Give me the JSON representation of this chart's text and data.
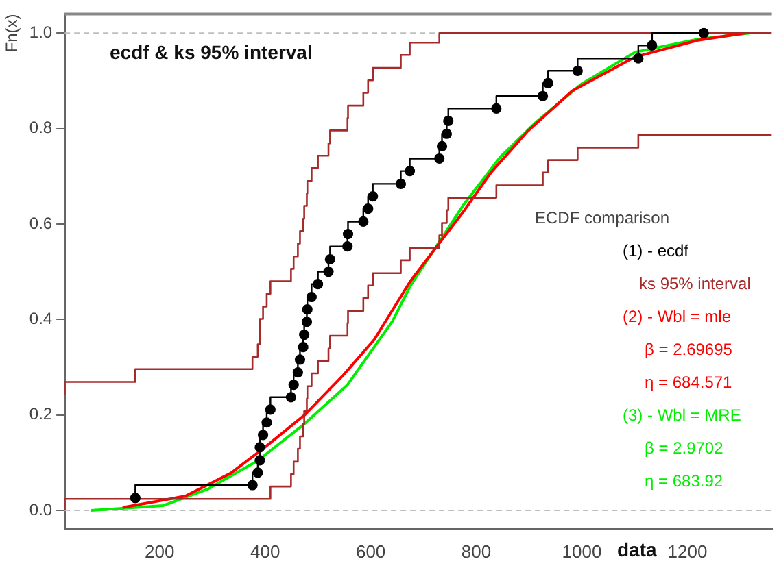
{
  "chart_data": {
    "type": "step",
    "title": "ecdf & ks 95% interval",
    "xlabel": "data",
    "ylabel": "Fn(x)",
    "legend_title": "ECDF comparison",
    "legend": "right",
    "marker": "none",
    "grid": false,
    "xlim": [
      20,
      1360
    ],
    "xticks": [
      200,
      400,
      600,
      800,
      1000,
      1200
    ],
    "ylim": [
      -0.04,
      1.04
    ],
    "yticks": [
      {
        "value": 0,
        "label": "0.0"
      },
      {
        "value": 0.2,
        "label": "0.2"
      },
      {
        "value": 0.4,
        "label": "0.4"
      },
      {
        "value": 0.6,
        "label": "0.6"
      },
      {
        "value": 0.8,
        "label": "0.8"
      },
      {
        "value": 1,
        "label": "1.0"
      }
    ],
    "ref_lines": [
      {
        "axis": "y",
        "value": 0,
        "color": "#bebebe",
        "line_style": "dashed"
      },
      {
        "axis": "y",
        "value": 1,
        "color": "#bebebe",
        "line_style": "dashed"
      }
    ],
    "series": [
      {
        "name": "(1) - ecdf",
        "marker": "circle",
        "color": "#000000",
        "x": [
          154,
          376,
          386,
          390,
          390,
          396,
          403,
          410,
          449,
          454,
          462,
          466,
          472,
          474,
          479,
          480,
          488,
          500,
          520,
          523,
          556,
          557,
          586,
          595,
          604,
          657,
          674,
          730,
          735,
          744,
          747,
          838,
          926,
          936,
          992,
          1107,
          1133,
          1231
        ],
        "values": [
          0.026,
          0.053,
          0.079,
          0.105,
          0.132,
          0.158,
          0.184,
          0.211,
          0.237,
          0.263,
          0.289,
          0.316,
          0.342,
          0.368,
          0.395,
          0.421,
          0.447,
          0.474,
          0.5,
          0.526,
          0.553,
          0.579,
          0.605,
          0.632,
          0.658,
          0.684,
          0.711,
          0.737,
          0.763,
          0.789,
          0.816,
          0.842,
          0.868,
          0.895,
          0.921,
          0.947,
          0.974,
          1
        ]
      },
      {
        "name": "ks 95% interval",
        "color": "#a52a2a",
        "x": [
          20,
          154,
          376,
          386,
          390,
          390,
          396,
          403,
          410,
          449,
          454,
          462,
          466,
          472,
          474,
          479,
          480,
          488,
          500,
          520,
          523,
          556,
          557,
          586,
          595,
          604,
          657,
          674,
          730,
          735,
          1360
        ],
        "values": [
          0.243,
          0.269,
          0.296,
          0.322,
          0.348,
          0.375,
          0.401,
          0.427,
          0.454,
          0.48,
          0.506,
          0.532,
          0.559,
          0.585,
          0.611,
          0.638,
          0.664,
          0.69,
          0.717,
          0.743,
          0.769,
          0.796,
          0.822,
          0.848,
          0.875,
          0.901,
          0.927,
          0.954,
          0.98,
          1,
          1
        ]
      },
      {
        "color": "#a52a2a",
        "x": [
          20,
          410,
          449,
          454,
          462,
          466,
          472,
          474,
          479,
          480,
          488,
          500,
          520,
          523,
          556,
          557,
          586,
          595,
          604,
          657,
          674,
          730,
          735,
          744,
          747,
          838,
          926,
          936,
          992,
          1107,
          1133,
          1360
        ],
        "values": [
          0,
          0.024,
          0.05,
          0.076,
          0.102,
          0.129,
          0.155,
          0.181,
          0.208,
          0.234,
          0.26,
          0.287,
          0.313,
          0.339,
          0.366,
          0.392,
          0.418,
          0.445,
          0.471,
          0.497,
          0.524,
          0.55,
          0.576,
          0.602,
          0.629,
          0.655,
          0.681,
          0.708,
          0.734,
          0.76,
          0.787,
          0.787
        ]
      },
      {
        "name": "(2) - Wbl = mle",
        "type": "line",
        "color": "#ff0000",
        "x": [
          130,
          249,
          335,
          397,
          475,
          547,
          607,
          675,
          777,
          828,
          897,
          982,
          1101,
          1220,
          1309
        ],
        "values": [
          0.006,
          0.03,
          0.078,
          0.13,
          0.2,
          0.282,
          0.358,
          0.48,
          0.628,
          0.708,
          0.794,
          0.879,
          0.95,
          0.985,
          1
        ]
      },
      {
        "name": "(3) - Wbl = MRE",
        "type": "line",
        "color": "#00ee00",
        "x": [
          70,
          207,
          292,
          386,
          471,
          556,
          641,
          675,
          777,
          846,
          913,
          999,
          1101,
          1220,
          1318
        ],
        "values": [
          0,
          0.01,
          0.045,
          0.104,
          0.178,
          0.263,
          0.396,
          0.47,
          0.642,
          0.741,
          0.813,
          0.893,
          0.96,
          0.987,
          1
        ]
      }
    ],
    "annotations": [
      "β = 2.69695",
      "η = 684.571",
      "β = 2.9702",
      "η = 683.92"
    ]
  }
}
